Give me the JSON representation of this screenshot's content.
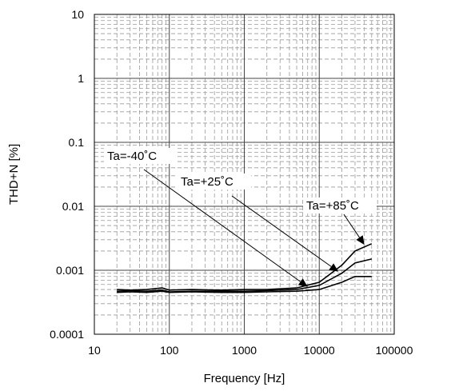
{
  "chart_data": {
    "type": "line",
    "title": "",
    "xlabel": "Frequency [Hz]",
    "ylabel": "THD+N [%]",
    "xscale": "log",
    "yscale": "log",
    "xlim": [
      10,
      100000
    ],
    "ylim": [
      0.0001,
      10
    ],
    "grid": true,
    "x_ticks": [
      "10",
      "100",
      "1000",
      "10000",
      "100000"
    ],
    "y_ticks": [
      "0.0001",
      "0.001",
      "0.01",
      "0.1",
      "1",
      "10"
    ],
    "series": [
      {
        "name": "Ta=-40˚C",
        "x": [
          20,
          30,
          50,
          80,
          100,
          200,
          500,
          1000,
          2000,
          5000,
          10000,
          20000,
          30000,
          50000
        ],
        "y": [
          0.00045,
          0.00046,
          0.00045,
          0.00047,
          0.00045,
          0.00046,
          0.00045,
          0.00045,
          0.00046,
          0.00047,
          0.0005,
          0.00065,
          0.0008,
          0.0008
        ]
      },
      {
        "name": "Ta=+25˚C",
        "x": [
          20,
          30,
          50,
          80,
          100,
          200,
          500,
          1000,
          2000,
          5000,
          10000,
          20000,
          30000,
          50000
        ],
        "y": [
          0.00047,
          0.00048,
          0.00047,
          0.00049,
          0.00046,
          0.00047,
          0.00047,
          0.00047,
          0.00048,
          0.0005,
          0.00058,
          0.0009,
          0.0013,
          0.0015
        ]
      },
      {
        "name": "Ta=+85˚C",
        "x": [
          20,
          30,
          50,
          80,
          100,
          200,
          500,
          1000,
          2000,
          5000,
          10000,
          20000,
          30000,
          50000
        ],
        "y": [
          0.0005,
          0.00049,
          0.0005,
          0.00053,
          0.00049,
          0.0005,
          0.00049,
          0.0005,
          0.0005,
          0.00053,
          0.00065,
          0.0012,
          0.002,
          0.0026
        ]
      }
    ],
    "annotations": [
      {
        "text": "Ta=-40˚C",
        "series": 0,
        "arrow_to": [
          7000,
          0.00055
        ]
      },
      {
        "text": "Ta=+25˚C",
        "series": 1,
        "arrow_to": [
          18000,
          0.00095
        ]
      },
      {
        "text": "Ta=+85˚C",
        "series": 2,
        "arrow_to": [
          40000,
          0.0025
        ]
      }
    ]
  }
}
